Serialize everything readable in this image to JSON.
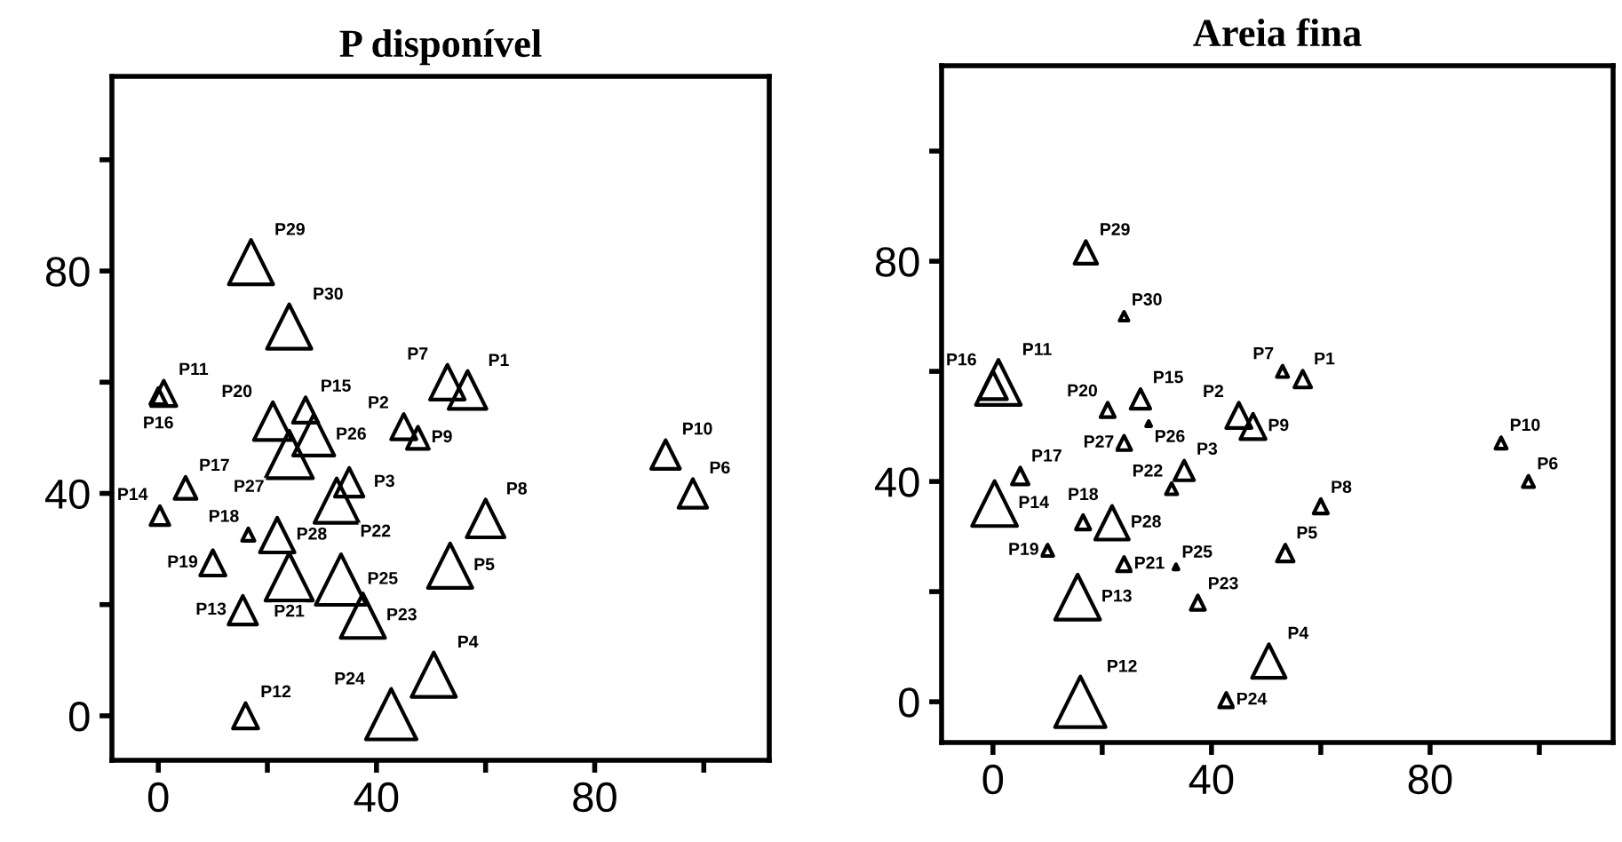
{
  "chart_data": [
    {
      "type": "bubble",
      "title": "P disponível",
      "marker": "triangle",
      "grid": false,
      "xlim": [
        -8.5,
        112
      ],
      "ylim": [
        -8,
        115
      ],
      "xticks": [
        0,
        {
          "value": 20,
          "label": null
        },
        40,
        {
          "value": 60,
          "label": null
        },
        80,
        {
          "value": 100,
          "label": null
        }
      ],
      "yticks": [
        0,
        {
          "value": 20,
          "label": null
        },
        40,
        {
          "value": 60,
          "label": null
        },
        80,
        {
          "value": 100,
          "label": null
        }
      ],
      "series": [
        {
          "color": "#000000",
          "x": [
            56.7,
            45,
            35,
            50.5,
            53.5,
            98,
            53,
            60,
            47.6,
            93,
            1,
            16,
            15.5,
            0.3,
            27,
            0,
            5,
            16.5,
            10,
            21,
            24,
            32.7,
            37.5,
            42.7,
            33.5,
            28.5,
            24,
            21.8,
            17,
            24
          ],
          "values": [
            58.6,
            52,
            42,
            7.4,
            27,
            40,
            60,
            35.5,
            50,
            47,
            58,
            0,
            19,
            36,
            55,
            57.5,
            41,
            32.6,
            27.5,
            53,
            25,
            38.7,
            18,
            0.3,
            24.5,
            50.5,
            47,
            32.5,
            81.6,
            70
          ],
          "sizes": [
            0.56,
            0.25,
            0.32,
            0.77,
            0.77,
            0.32,
            0.47,
            0.56,
            0.19,
            0.32,
            0.25,
            0.25,
            0.32,
            0.14,
            0.25,
            0.1,
            0.19,
            0.06,
            0.25,
            0.56,
            0.88,
            0.77,
            0.77,
            1,
            1,
            0.66,
            0.88,
            0.47,
            0.77,
            0.77
          ]
        }
      ],
      "annotations": [
        {
          "text": "P1",
          "x": 56.7,
          "y": 58.6
        },
        {
          "text": "P2",
          "x": 45,
          "y": 52
        },
        {
          "text": "P3",
          "x": 35,
          "y": 42
        },
        {
          "text": "P4",
          "x": 50.5,
          "y": 7.4
        },
        {
          "text": "P5",
          "x": 53.5,
          "y": 27
        },
        {
          "text": "P6",
          "x": 98,
          "y": 40
        },
        {
          "text": "P7",
          "x": 53,
          "y": 60
        },
        {
          "text": "P8",
          "x": 60,
          "y": 35.5
        },
        {
          "text": "P9",
          "x": 47.6,
          "y": 50
        },
        {
          "text": "P10",
          "x": 93,
          "y": 47
        },
        {
          "text": "P11",
          "x": 1,
          "y": 58
        },
        {
          "text": "P12",
          "x": 16,
          "y": 0
        },
        {
          "text": "P13",
          "x": 15.5,
          "y": 19
        },
        {
          "text": "P14",
          "x": 0.3,
          "y": 36
        },
        {
          "text": "P15",
          "x": 27,
          "y": 55
        },
        {
          "text": "P16",
          "x": 0,
          "y": 57.5
        },
        {
          "text": "P17",
          "x": 5,
          "y": 41
        },
        {
          "text": "P18",
          "x": 16.5,
          "y": 32.6
        },
        {
          "text": "P19",
          "x": 10,
          "y": 27.5
        },
        {
          "text": "P20",
          "x": 21,
          "y": 53
        },
        {
          "text": "P21",
          "x": 24,
          "y": 25
        },
        {
          "text": "P22",
          "x": 32.7,
          "y": 38.7
        },
        {
          "text": "P23",
          "x": 37.5,
          "y": 18
        },
        {
          "text": "P24",
          "x": 42.7,
          "y": 0.3
        },
        {
          "text": "P25",
          "x": 33.5,
          "y": 24.5
        },
        {
          "text": "P26",
          "x": 28.5,
          "y": 50.5
        },
        {
          "text": "P27",
          "x": 24,
          "y": 47
        },
        {
          "text": "P28",
          "x": 21.8,
          "y": 32.5
        },
        {
          "text": "P29",
          "x": 17,
          "y": 81.6
        },
        {
          "text": "P30",
          "x": 24,
          "y": 70
        }
      ]
    },
    {
      "type": "bubble",
      "title": "Areia fina",
      "marker": "triangle",
      "grid": false,
      "xlim": [
        -9.4,
        113.5
      ],
      "ylim": [
        -7.4,
        115.5
      ],
      "xticks": [
        0,
        {
          "value": 20,
          "label": null
        },
        40,
        {
          "value": 60,
          "label": null
        },
        80,
        {
          "value": 100,
          "label": null
        }
      ],
      "yticks": [
        0,
        {
          "value": 20,
          "label": null
        },
        40,
        {
          "value": 60,
          "label": null
        },
        80,
        {
          "value": 100,
          "label": null
        }
      ],
      "series": [
        {
          "color": "#000000",
          "x": [
            56.7,
            45,
            35,
            50.5,
            53.5,
            98,
            53,
            60,
            47.6,
            93,
            1,
            16,
            15.5,
            0.3,
            27,
            0,
            5,
            16.5,
            10,
            21,
            24,
            32.7,
            37.5,
            42.7,
            33.5,
            28.5,
            24,
            21.8,
            17,
            24
          ],
          "values": [
            58.6,
            52,
            42,
            7.4,
            27,
            40,
            60,
            35.5,
            50,
            47,
            58,
            0,
            19,
            36,
            55,
            57.5,
            41,
            32.6,
            27.5,
            53,
            25,
            38.7,
            18,
            0.3,
            24.5,
            50.5,
            47,
            32.5,
            81.6,
            70
          ],
          "sizes": [
            0.11,
            0.25,
            0.15,
            0.44,
            0.11,
            0.05,
            0.05,
            0.08,
            0.25,
            0.05,
            0.79,
            1,
            0.79,
            0.79,
            0.15,
            0.31,
            0.11,
            0.08,
            0.05,
            0.08,
            0.08,
            0.05,
            0.08,
            0.08,
            0.01,
            0.01,
            0.08,
            0.44,
            0.2,
            0.03
          ]
        }
      ],
      "annotations": [
        {
          "text": "P1",
          "x": 56.7,
          "y": 58.6
        },
        {
          "text": "P2",
          "x": 45,
          "y": 52
        },
        {
          "text": "P3",
          "x": 35,
          "y": 42
        },
        {
          "text": "P4",
          "x": 50.5,
          "y": 7.4
        },
        {
          "text": "P5",
          "x": 53.5,
          "y": 27
        },
        {
          "text": "P6",
          "x": 98,
          "y": 40
        },
        {
          "text": "P7",
          "x": 53,
          "y": 60
        },
        {
          "text": "P8",
          "x": 60,
          "y": 35.5
        },
        {
          "text": "P9",
          "x": 47.6,
          "y": 50
        },
        {
          "text": "P10",
          "x": 93,
          "y": 47
        },
        {
          "text": "P11",
          "x": 1,
          "y": 58
        },
        {
          "text": "P12",
          "x": 16,
          "y": 0
        },
        {
          "text": "P13",
          "x": 15.5,
          "y": 19
        },
        {
          "text": "P14",
          "x": 0.3,
          "y": 36
        },
        {
          "text": "P15",
          "x": 27,
          "y": 55
        },
        {
          "text": "P16",
          "x": 0,
          "y": 57.5
        },
        {
          "text": "P17",
          "x": 5,
          "y": 41
        },
        {
          "text": "P18",
          "x": 16.5,
          "y": 32.6
        },
        {
          "text": "P19",
          "x": 10,
          "y": 27.5
        },
        {
          "text": "P20",
          "x": 21,
          "y": 53
        },
        {
          "text": "P21",
          "x": 24,
          "y": 25
        },
        {
          "text": "P22",
          "x": 32.7,
          "y": 38.7
        },
        {
          "text": "P23",
          "x": 37.5,
          "y": 18
        },
        {
          "text": "P24",
          "x": 42.7,
          "y": 0.3
        },
        {
          "text": "P25",
          "x": 33.5,
          "y": 24.5
        },
        {
          "text": "P26",
          "x": 28.5,
          "y": 50.5
        },
        {
          "text": "P27",
          "x": 24,
          "y": 47
        },
        {
          "text": "P28",
          "x": 21.8,
          "y": 32.5
        },
        {
          "text": "P29",
          "x": 17,
          "y": 81.6
        },
        {
          "text": "P30",
          "x": 24,
          "y": 70
        }
      ]
    }
  ]
}
